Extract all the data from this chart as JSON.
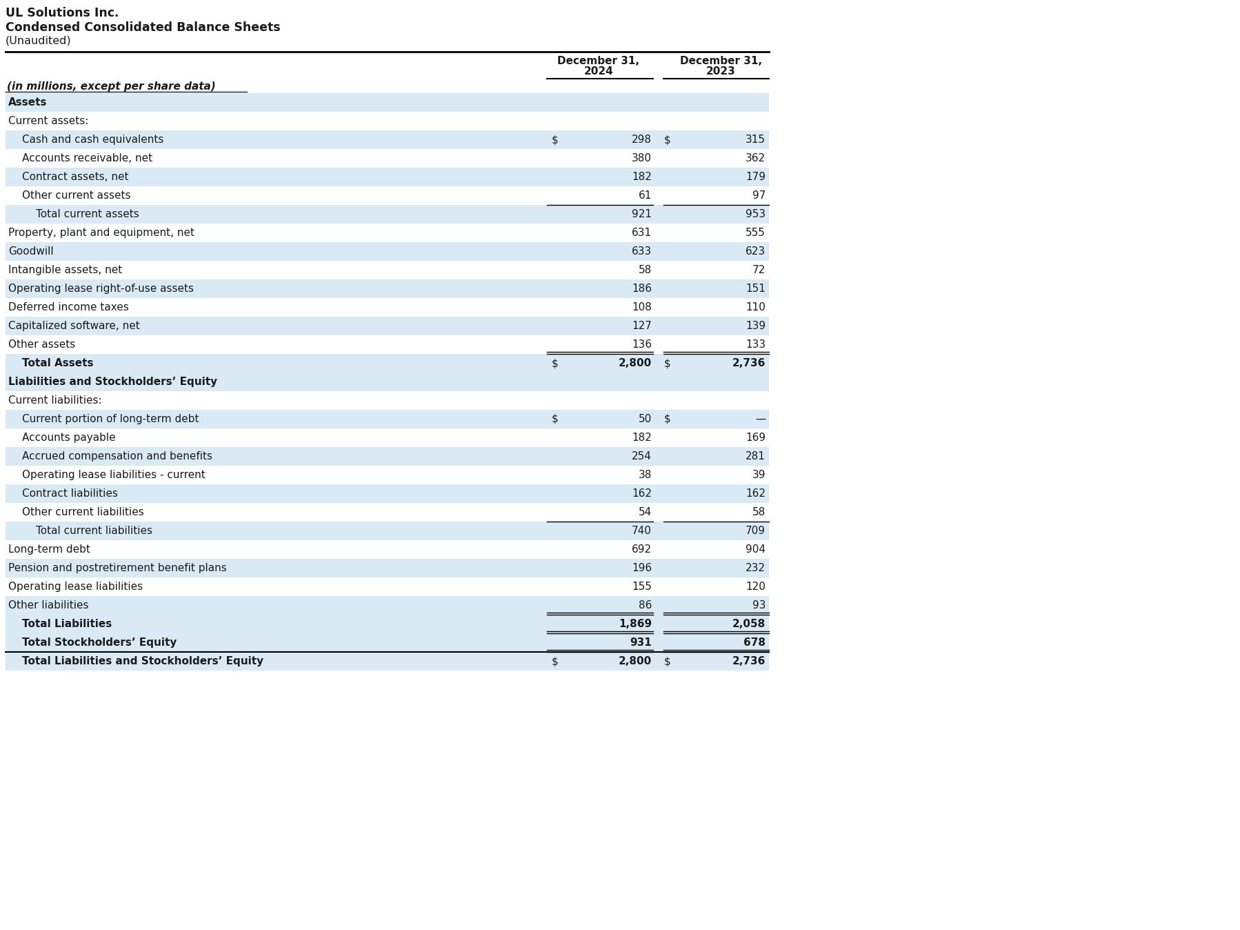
{
  "title_line1": "UL Solutions Inc.",
  "title_line2": "Condensed Consolidated Balance Sheets",
  "title_line3": "(Unaudited)",
  "col_header_label": "(in millions, except per share data)",
  "col1_header_line1": "December 31,",
  "col1_header_line2": "2024",
  "col2_header_line1": "December 31,",
  "col2_header_line2": "2023",
  "background_color": "#ffffff",
  "light_blue": "#daeaf5",
  "white_bg": "#ffffff",
  "rows": [
    {
      "label": "Assets",
      "v1": "",
      "v2": "",
      "style": "section_header",
      "dollar1": false,
      "dollar2": false,
      "indent": 0
    },
    {
      "label": "Current assets:",
      "v1": "",
      "v2": "",
      "style": "subsection",
      "dollar1": false,
      "dollar2": false,
      "indent": 0
    },
    {
      "label": "Cash and cash equivalents",
      "v1": "298",
      "v2": "315",
      "style": "normal",
      "dollar1": true,
      "dollar2": true,
      "indent": 1
    },
    {
      "label": "Accounts receivable, net",
      "v1": "380",
      "v2": "362",
      "style": "normal",
      "dollar1": false,
      "dollar2": false,
      "indent": 1
    },
    {
      "label": "Contract assets, net",
      "v1": "182",
      "v2": "179",
      "style": "normal",
      "dollar1": false,
      "dollar2": false,
      "indent": 1
    },
    {
      "label": "Other current assets",
      "v1": "61",
      "v2": "97",
      "style": "normal",
      "dollar1": false,
      "dollar2": false,
      "indent": 1
    },
    {
      "label": "Total current assets",
      "v1": "921",
      "v2": "953",
      "style": "subtotal",
      "dollar1": false,
      "dollar2": false,
      "indent": 2
    },
    {
      "label": "Property, plant and equipment, net",
      "v1": "631",
      "v2": "555",
      "style": "normal",
      "dollar1": false,
      "dollar2": false,
      "indent": 0
    },
    {
      "label": "Goodwill",
      "v1": "633",
      "v2": "623",
      "style": "normal",
      "dollar1": false,
      "dollar2": false,
      "indent": 0
    },
    {
      "label": "Intangible assets, net",
      "v1": "58",
      "v2": "72",
      "style": "normal",
      "dollar1": false,
      "dollar2": false,
      "indent": 0
    },
    {
      "label": "Operating lease right-of-use assets",
      "v1": "186",
      "v2": "151",
      "style": "normal",
      "dollar1": false,
      "dollar2": false,
      "indent": 0
    },
    {
      "label": "Deferred income taxes",
      "v1": "108",
      "v2": "110",
      "style": "normal",
      "dollar1": false,
      "dollar2": false,
      "indent": 0
    },
    {
      "label": "Capitalized software, net",
      "v1": "127",
      "v2": "139",
      "style": "normal",
      "dollar1": false,
      "dollar2": false,
      "indent": 0
    },
    {
      "label": "Other assets",
      "v1": "136",
      "v2": "133",
      "style": "normal",
      "dollar1": false,
      "dollar2": false,
      "indent": 0
    },
    {
      "label": "Total Assets",
      "v1": "2,800",
      "v2": "2,736",
      "style": "total",
      "dollar1": true,
      "dollar2": true,
      "indent": 1
    },
    {
      "label": "Liabilities and Stockholders’ Equity",
      "v1": "",
      "v2": "",
      "style": "section_header",
      "dollar1": false,
      "dollar2": false,
      "indent": 0
    },
    {
      "label": "Current liabilities:",
      "v1": "",
      "v2": "",
      "style": "subsection",
      "dollar1": false,
      "dollar2": false,
      "indent": 0
    },
    {
      "label": "Current portion of long-term debt",
      "v1": "50",
      "v2": "—",
      "style": "normal",
      "dollar1": true,
      "dollar2": true,
      "indent": 1
    },
    {
      "label": "Accounts payable",
      "v1": "182",
      "v2": "169",
      "style": "normal",
      "dollar1": false,
      "dollar2": false,
      "indent": 1
    },
    {
      "label": "Accrued compensation and benefits",
      "v1": "254",
      "v2": "281",
      "style": "normal",
      "dollar1": false,
      "dollar2": false,
      "indent": 1
    },
    {
      "label": "Operating lease liabilities - current",
      "v1": "38",
      "v2": "39",
      "style": "normal",
      "dollar1": false,
      "dollar2": false,
      "indent": 1
    },
    {
      "label": "Contract liabilities",
      "v1": "162",
      "v2": "162",
      "style": "normal",
      "dollar1": false,
      "dollar2": false,
      "indent": 1
    },
    {
      "label": "Other current liabilities",
      "v1": "54",
      "v2": "58",
      "style": "normal",
      "dollar1": false,
      "dollar2": false,
      "indent": 1
    },
    {
      "label": "Total current liabilities",
      "v1": "740",
      "v2": "709",
      "style": "subtotal",
      "dollar1": false,
      "dollar2": false,
      "indent": 2
    },
    {
      "label": "Long-term debt",
      "v1": "692",
      "v2": "904",
      "style": "normal",
      "dollar1": false,
      "dollar2": false,
      "indent": 0
    },
    {
      "label": "Pension and postretirement benefit plans",
      "v1": "196",
      "v2": "232",
      "style": "normal",
      "dollar1": false,
      "dollar2": false,
      "indent": 0
    },
    {
      "label": "Operating lease liabilities",
      "v1": "155",
      "v2": "120",
      "style": "normal",
      "dollar1": false,
      "dollar2": false,
      "indent": 0
    },
    {
      "label": "Other liabilities",
      "v1": "86",
      "v2": "93",
      "style": "normal",
      "dollar1": false,
      "dollar2": false,
      "indent": 0
    },
    {
      "label": "Total Liabilities",
      "v1": "1,869",
      "v2": "2,058",
      "style": "total",
      "dollar1": false,
      "dollar2": false,
      "indent": 1
    },
    {
      "label": "Total Stockholders’ Equity",
      "v1": "931",
      "v2": "678",
      "style": "total",
      "dollar1": false,
      "dollar2": false,
      "indent": 1
    },
    {
      "label": "Total Liabilities and Stockholders’ Equity",
      "v1": "2,800",
      "v2": "2,736",
      "style": "total_final",
      "dollar1": true,
      "dollar2": true,
      "indent": 1
    }
  ],
  "row_bg_map": [
    "#daeaf5",
    "#ffffff",
    "#daeaf5",
    "#ffffff",
    "#daeaf5",
    "#ffffff",
    "#daeaf5",
    "#ffffff",
    "#daeaf5",
    "#ffffff",
    "#daeaf5",
    "#ffffff",
    "#daeaf5",
    "#ffffff",
    "#daeaf5",
    "#daeaf5",
    "#ffffff",
    "#daeaf5",
    "#ffffff",
    "#daeaf5",
    "#ffffff",
    "#daeaf5",
    "#ffffff",
    "#daeaf5",
    "#ffffff",
    "#daeaf5",
    "#ffffff",
    "#daeaf5",
    "#daeaf5",
    "#daeaf5",
    "#daeaf5"
  ]
}
